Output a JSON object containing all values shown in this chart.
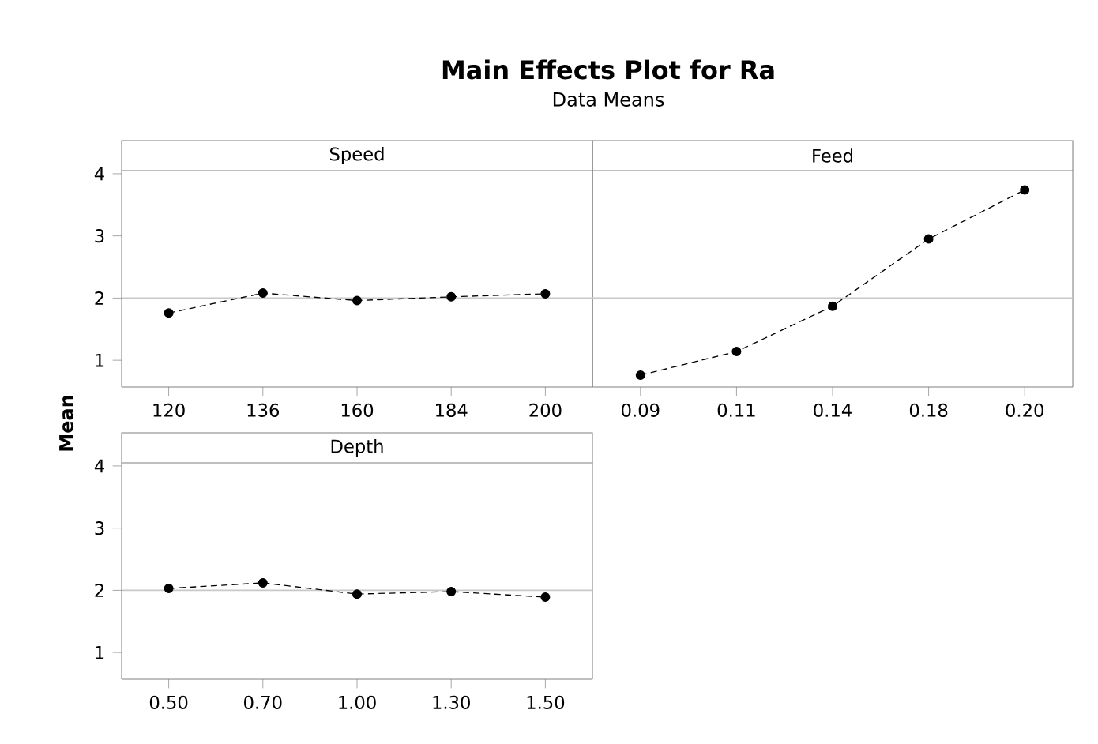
{
  "chart_data": [
    {
      "type": "line",
      "title": "Speed",
      "categories": [
        "120",
        "136",
        "160",
        "184",
        "200"
      ],
      "values": [
        1.76,
        2.08,
        1.96,
        2.02,
        2.07
      ],
      "color": "#000000",
      "ylim": [
        0.57,
        4.05
      ],
      "yticks": [
        1,
        2,
        3,
        4
      ],
      "marker": "circle",
      "line_style": "dashed",
      "ref_lines": [
        {
          "axis": "y",
          "value": 2.0,
          "color": "#c8c8c8"
        }
      ],
      "annotations": [
        "Main Effects Plot for Ra"
      ],
      "subtitle": "Data Means",
      "ylabel": "Mean"
    },
    {
      "type": "line",
      "title": "Feed",
      "categories": [
        "0.09",
        "0.11",
        "0.14",
        "0.18",
        "0.20"
      ],
      "values": [
        0.76,
        1.14,
        1.87,
        2.95,
        3.74
      ],
      "color": "#000000",
      "ylim": [
        0.57,
        4.05
      ],
      "yticks": [
        1,
        2,
        3,
        4
      ],
      "marker": "circle",
      "line_style": "dashed",
      "ref_lines": [
        {
          "axis": "y",
          "value": 2.0,
          "color": "#c8c8c8"
        }
      ],
      "tick_labels": "x"
    },
    {
      "type": "line",
      "title": "Depth",
      "categories": [
        "0.50",
        "0.70",
        "1.00",
        "1.30",
        "1.50"
      ],
      "values": [
        2.03,
        2.12,
        1.94,
        1.98,
        1.89
      ],
      "color": "#000000",
      "ylim": [
        0.57,
        4.05
      ],
      "yticks": [
        1,
        2,
        3,
        4
      ],
      "marker": "circle",
      "line_style": "dashed",
      "ref_lines": [
        {
          "axis": "y",
          "value": 2.0,
          "color": "#c8c8c8"
        }
      ]
    }
  ]
}
